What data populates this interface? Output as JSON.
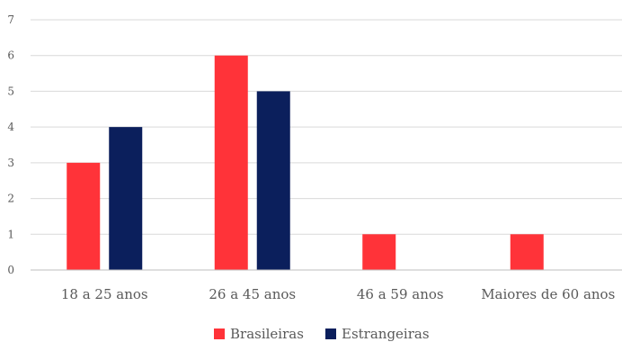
{
  "chart_data": {
    "type": "bar",
    "title": "",
    "xlabel": "",
    "ylabel": "",
    "categories": [
      "18 a 25 anos",
      "26 a 45 anos",
      "46 a 59 anos",
      "Maiores de 60 anos"
    ],
    "series": [
      {
        "name": "Brasileiras",
        "color": "#ff3339",
        "values": [
          3,
          6,
          1,
          1
        ]
      },
      {
        "name": "Estrangeiras",
        "color": "#0b1f5c",
        "values": [
          4,
          5,
          0,
          0
        ]
      }
    ],
    "ylim": [
      0,
      7
    ],
    "yticks": [
      "0",
      "1",
      "2",
      "3",
      "4",
      "5",
      "6",
      "7"
    ],
    "grid": true,
    "legend_position": "bottom"
  }
}
